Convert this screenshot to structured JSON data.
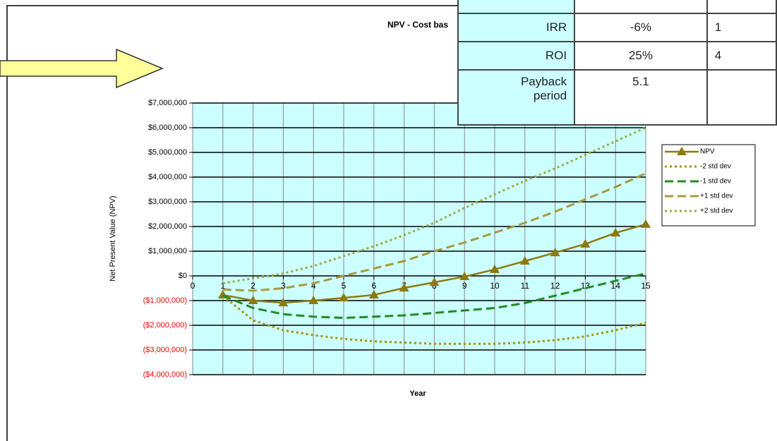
{
  "chart_data": {
    "type": "line",
    "title": "NPV - Cost bas",
    "xlabel": "Year",
    "ylabel": "Net Present Value (NPV)",
    "x": [
      1,
      2,
      3,
      4,
      5,
      6,
      7,
      8,
      9,
      10,
      11,
      12,
      13,
      14,
      15
    ],
    "xlim": [
      0,
      15
    ],
    "xticks": [
      0,
      1,
      2,
      3,
      4,
      5,
      6,
      7,
      8,
      9,
      10,
      11,
      12,
      13,
      14,
      15
    ],
    "ylim": [
      -4000000,
      7000000
    ],
    "yticks": [
      {
        "value": -4000000,
        "label": "($4,000,000)"
      },
      {
        "value": -3000000,
        "label": "($3,000,000)"
      },
      {
        "value": -2000000,
        "label": "($2,000,000)"
      },
      {
        "value": -1000000,
        "label": "($1,000,000)"
      },
      {
        "value": 0,
        "label": "$0"
      },
      {
        "value": 1000000,
        "label": "$1,000,000"
      },
      {
        "value": 2000000,
        "label": "$2,000,000"
      },
      {
        "value": 3000000,
        "label": "$3,000,000"
      },
      {
        "value": 4000000,
        "label": "$4,000,000"
      },
      {
        "value": 5000000,
        "label": "$5,000,000"
      },
      {
        "value": 6000000,
        "label": "$6,000,000"
      },
      {
        "value": 7000000,
        "label": "$7,000,000"
      }
    ],
    "negative_label_color": "#ff0000",
    "plot_background": "#ccffff",
    "grid": true,
    "legend": "right",
    "series": [
      {
        "name": "NPV",
        "color": "#8c7a10",
        "dash": "solid",
        "marker": "triangle",
        "values": [
          -770000,
          -1000000,
          -1090000,
          -1000000,
          -890000,
          -770000,
          -490000,
          -260000,
          -30000,
          260000,
          600000,
          940000,
          1290000,
          1740000,
          2090000
        ]
      },
      {
        "name": "-2 std dev",
        "color": "#a89000",
        "dash": "dotted",
        "values": [
          -800000,
          -1800000,
          -2200000,
          -2400000,
          -2550000,
          -2650000,
          -2700000,
          -2750000,
          -2750000,
          -2750000,
          -2700000,
          -2600000,
          -2450000,
          -2200000,
          -1900000
        ]
      },
      {
        "name": "-1 std dev",
        "color": "#228b22",
        "dash": "dashed",
        "values": [
          -800000,
          -1300000,
          -1550000,
          -1650000,
          -1700000,
          -1650000,
          -1600000,
          -1500000,
          -1400000,
          -1300000,
          -1100000,
          -800000,
          -500000,
          -200000,
          100000
        ]
      },
      {
        "name": "+1 std dev",
        "color": "#a89a3c",
        "dash": "dashed",
        "values": [
          -550000,
          -600000,
          -500000,
          -300000,
          0,
          300000,
          600000,
          1000000,
          1350000,
          1750000,
          2150000,
          2600000,
          3100000,
          3600000,
          4150000
        ]
      },
      {
        "name": "+2 std dev",
        "color": "#a0a840",
        "dash": "dotted",
        "values": [
          -300000,
          -100000,
          100000,
          400000,
          800000,
          1200000,
          1650000,
          2150000,
          2750000,
          3300000,
          3850000,
          4350000,
          4900000,
          5450000,
          6000000
        ]
      }
    ]
  },
  "table": {
    "rows": [
      [
        "IRR",
        "-6%",
        "1"
      ],
      [
        "ROI",
        "25%",
        "4"
      ],
      [
        "Payback period",
        "5.1"
      ]
    ]
  }
}
